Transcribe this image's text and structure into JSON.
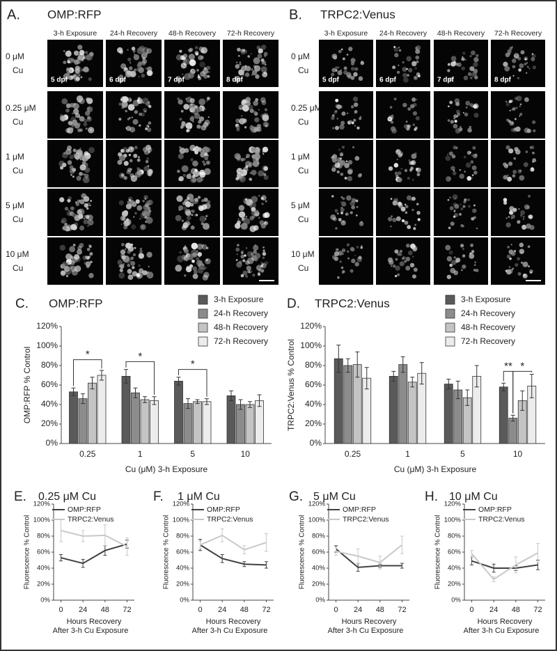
{
  "image_panels": [
    {
      "letter": "A.",
      "title": "OMP:RFP",
      "columns": [
        "3-h Exposure",
        "24-h Recovery",
        "48-h Recovery",
        "72-h Recovery"
      ],
      "rows": [
        [
          "0 μM",
          "Cu"
        ],
        [
          "0.25 μM",
          "Cu"
        ],
        [
          "1 μM",
          "Cu"
        ],
        [
          "5 μM",
          "Cu"
        ],
        [
          "10 μM",
          "Cu"
        ]
      ],
      "stages": [
        "5 dpf",
        "6 dpf",
        "7 dpf",
        "8 dpf"
      ]
    },
    {
      "letter": "B.",
      "title": "TRPC2:Venus",
      "columns": [
        "3-h Exposure",
        "24-h Recovery",
        "48-h Recovery",
        "72-h Recovery"
      ],
      "rows": [
        [
          "0 μM",
          "Cu"
        ],
        [
          "0.25 μM",
          "Cu"
        ],
        [
          "1 μM",
          "Cu"
        ],
        [
          "5 μM",
          "Cu"
        ],
        [
          "10 μM",
          "Cu"
        ]
      ],
      "stages": [
        "5 dpf",
        "6 dpf",
        "7 dpf",
        "8 dpf"
      ]
    }
  ],
  "chart_data": [
    {
      "type": "bar",
      "letter": "C.",
      "title": "OMP:RFP",
      "ylabel": "OMP:RFP % Control",
      "xlabel": "Cu (μM)  3-h Exposure",
      "categories": [
        "0.25",
        "1",
        "5",
        "10"
      ],
      "series": [
        {
          "name": "3-h Exposure",
          "color": "#5a5a5a",
          "values": [
            53,
            69,
            64,
            49
          ],
          "errors": [
            4,
            7,
            4,
            5
          ]
        },
        {
          "name": "24-h Recovery",
          "color": "#8c8c8c",
          "values": [
            46,
            52,
            41,
            40
          ],
          "errors": [
            5,
            5,
            5,
            5
          ]
        },
        {
          "name": "48-h Recovery",
          "color": "#c4c4c4",
          "values": [
            62,
            45,
            43,
            40
          ],
          "errors": [
            6,
            3,
            2,
            3
          ]
        },
        {
          "name": "72-h Recovery",
          "color": "#ececec",
          "values": [
            70,
            44,
            43,
            44
          ],
          "errors": [
            5,
            4,
            3,
            6
          ]
        }
      ],
      "ylim": [
        0,
        120
      ],
      "yticks": [
        {
          "value": 0,
          "label": "0%"
        },
        {
          "value": 20,
          "label": "20%"
        },
        {
          "value": 40,
          "label": "40%"
        },
        {
          "value": 60,
          "label": "60%"
        },
        {
          "value": 80,
          "label": "80%"
        },
        {
          "value": 100,
          "label": "100%"
        },
        {
          "value": 120,
          "label": "120%"
        }
      ],
      "annotations": [
        "*",
        "*",
        "*"
      ],
      "legend": "upper right"
    },
    {
      "type": "bar",
      "letter": "D.",
      "title": "TRPC2:Venus",
      "ylabel": "TRPC2:Venus % Control",
      "xlabel": "Cu (μM)  3-h Exposure",
      "categories": [
        "0.25",
        "1",
        "5",
        "10"
      ],
      "series": [
        {
          "name": "3-h Exposure",
          "color": "#5a5a5a",
          "values": [
            87,
            69,
            61,
            58
          ],
          "errors": [
            14,
            5,
            5,
            4
          ]
        },
        {
          "name": "24-h Recovery",
          "color": "#8c8c8c",
          "values": [
            80,
            81,
            55,
            26
          ],
          "errors": [
            7,
            8,
            9,
            3
          ]
        },
        {
          "name": "48-h Recovery",
          "color": "#c4c4c4",
          "values": [
            81,
            63,
            47,
            44
          ],
          "errors": [
            13,
            5,
            8,
            10
          ]
        },
        {
          "name": "72-h Recovery",
          "color": "#ececec",
          "values": [
            67,
            72,
            69,
            59
          ],
          "errors": [
            11,
            11,
            11,
            12
          ]
        }
      ],
      "ylim": [
        0,
        120
      ],
      "yticks": [
        {
          "value": 0,
          "label": "0%"
        },
        {
          "value": 20,
          "label": "20%"
        },
        {
          "value": 40,
          "label": "40%"
        },
        {
          "value": 60,
          "label": "60%"
        },
        {
          "value": 80,
          "label": "80%"
        },
        {
          "value": 100,
          "label": "100%"
        },
        {
          "value": 120,
          "label": "120%"
        }
      ],
      "annotations": [
        "**",
        "*"
      ],
      "legend": "upper right"
    },
    {
      "type": "line",
      "letter": "E.",
      "title": "0.25 μM Cu",
      "ylabel": "Fluorescence % Control",
      "xlabel": [
        "Hours Recovery",
        "After 3-h Cu Exposure"
      ],
      "x": [
        0,
        24,
        48,
        72
      ],
      "series": [
        {
          "name": "OMP:RFP",
          "color": "#404040",
          "values": [
            53,
            46,
            62,
            70
          ],
          "errors": [
            4,
            5,
            6,
            5
          ]
        },
        {
          "name": "TRPC2:Venus",
          "color": "#c8c8c8",
          "values": [
            87,
            80,
            81,
            67
          ],
          "errors": [
            14,
            7,
            13,
            11
          ]
        }
      ],
      "xlim": [
        -8,
        80
      ],
      "xticks": [
        0,
        24,
        48,
        72
      ],
      "ylim": [
        0,
        120
      ],
      "yticks": [
        {
          "value": 0,
          "label": "0%"
        },
        {
          "value": 20,
          "label": "20%"
        },
        {
          "value": 40,
          "label": "40%"
        },
        {
          "value": 60,
          "label": "60%"
        },
        {
          "value": 80,
          "label": "80%"
        },
        {
          "value": 100,
          "label": "100%"
        },
        {
          "value": 120,
          "label": "120%"
        }
      ]
    },
    {
      "type": "line",
      "letter": "F.",
      "title": "1 μM Cu",
      "ylabel": "Fluorescence % Control",
      "xlabel": [
        "Hours Recovery",
        "After 3-h Cu Exposure"
      ],
      "x": [
        0,
        24,
        48,
        72
      ],
      "series": [
        {
          "name": "OMP:RFP",
          "color": "#404040",
          "values": [
            69,
            52,
            45,
            44
          ],
          "errors": [
            7,
            5,
            3,
            4
          ]
        },
        {
          "name": "TRPC2:Venus",
          "color": "#c8c8c8",
          "values": [
            69,
            81,
            63,
            72
          ],
          "errors": [
            5,
            8,
            5,
            11
          ]
        }
      ],
      "xlim": [
        -8,
        80
      ],
      "xticks": [
        0,
        24,
        48,
        72
      ],
      "ylim": [
        0,
        120
      ],
      "yticks": [
        {
          "value": 0,
          "label": "0%"
        },
        {
          "value": 20,
          "label": "20%"
        },
        {
          "value": 40,
          "label": "40%"
        },
        {
          "value": 60,
          "label": "60%"
        },
        {
          "value": 80,
          "label": "80%"
        },
        {
          "value": 100,
          "label": "100%"
        },
        {
          "value": 120,
          "label": "120%"
        }
      ]
    },
    {
      "type": "line",
      "letter": "G.",
      "title": "5 μM Cu",
      "ylabel": "Fluorescence % Control",
      "xlabel": [
        "Hours Recovery",
        "After 3-h Cu Exposure"
      ],
      "x": [
        0,
        24,
        48,
        72
      ],
      "series": [
        {
          "name": "OMP:RFP",
          "color": "#404040",
          "values": [
            64,
            41,
            43,
            43
          ],
          "errors": [
            4,
            5,
            2,
            3
          ]
        },
        {
          "name": "TRPC2:Venus",
          "color": "#c8c8c8",
          "values": [
            61,
            55,
            47,
            69
          ],
          "errors": [
            5,
            9,
            8,
            11
          ]
        }
      ],
      "xlim": [
        -8,
        80
      ],
      "xticks": [
        0,
        24,
        48,
        72
      ],
      "ylim": [
        0,
        120
      ],
      "yticks": [
        {
          "value": 0,
          "label": "0%"
        },
        {
          "value": 20,
          "label": "20%"
        },
        {
          "value": 40,
          "label": "40%"
        },
        {
          "value": 60,
          "label": "60%"
        },
        {
          "value": 80,
          "label": "80%"
        },
        {
          "value": 100,
          "label": "100%"
        },
        {
          "value": 120,
          "label": "120%"
        }
      ]
    },
    {
      "type": "line",
      "letter": "H.",
      "title": "10 μM Cu",
      "ylabel": "Fluorescence % Control",
      "xlabel": [
        "Hours Recovery",
        "After 3-h Cu Exposure"
      ],
      "x": [
        0,
        24,
        48,
        72
      ],
      "series": [
        {
          "name": "OMP:RFP",
          "color": "#404040",
          "values": [
            49,
            40,
            40,
            44
          ],
          "errors": [
            5,
            5,
            3,
            6
          ]
        },
        {
          "name": "TRPC2:Venus",
          "color": "#c8c8c8",
          "values": [
            58,
            26,
            44,
            59
          ],
          "errors": [
            4,
            3,
            10,
            12
          ]
        }
      ],
      "xlim": [
        -8,
        80
      ],
      "xticks": [
        0,
        24,
        48,
        72
      ],
      "ylim": [
        0,
        120
      ],
      "yticks": [
        {
          "value": 0,
          "label": "0%"
        },
        {
          "value": 20,
          "label": "20%"
        },
        {
          "value": 40,
          "label": "40%"
        },
        {
          "value": 60,
          "label": "60%"
        },
        {
          "value": 80,
          "label": "80%"
        },
        {
          "value": 100,
          "label": "100%"
        },
        {
          "value": 120,
          "label": "120%"
        }
      ]
    }
  ]
}
